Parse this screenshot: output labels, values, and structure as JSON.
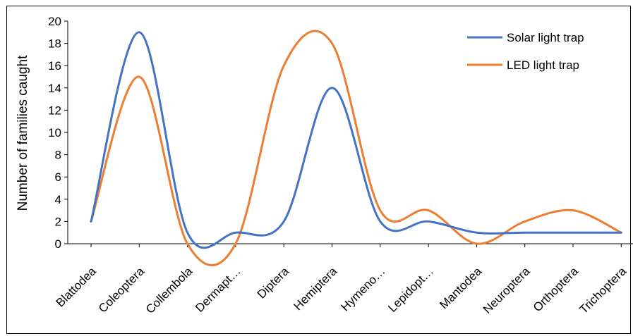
{
  "chart_data": {
    "type": "line",
    "title": "",
    "xlabel": "",
    "ylabel": "Number of families caught",
    "ylim": [
      0,
      20
    ],
    "yticks": [
      0,
      2,
      4,
      6,
      8,
      10,
      12,
      14,
      16,
      18,
      20
    ],
    "grid": false,
    "legend_position": "top-right",
    "categories": [
      "Blattodea",
      "Coleoptera",
      "Collembola",
      "Dermapt…",
      "Diptera",
      "Hemiptera",
      "Hymeno…",
      "Lepidopt…",
      "Mantodea",
      "Neuroptera",
      "Orthoptera",
      "Trichoptera"
    ],
    "series": [
      {
        "name": "Solar light trap",
        "color": "#4472C4",
        "values": [
          2,
          19,
          1,
          1,
          2,
          14,
          2,
          2,
          1,
          1,
          1,
          1
        ]
      },
      {
        "name": "LED light trap",
        "color": "#ED7D31",
        "values": [
          2,
          15,
          0,
          0,
          16,
          18,
          3,
          3,
          0,
          2,
          3,
          1
        ]
      }
    ]
  }
}
